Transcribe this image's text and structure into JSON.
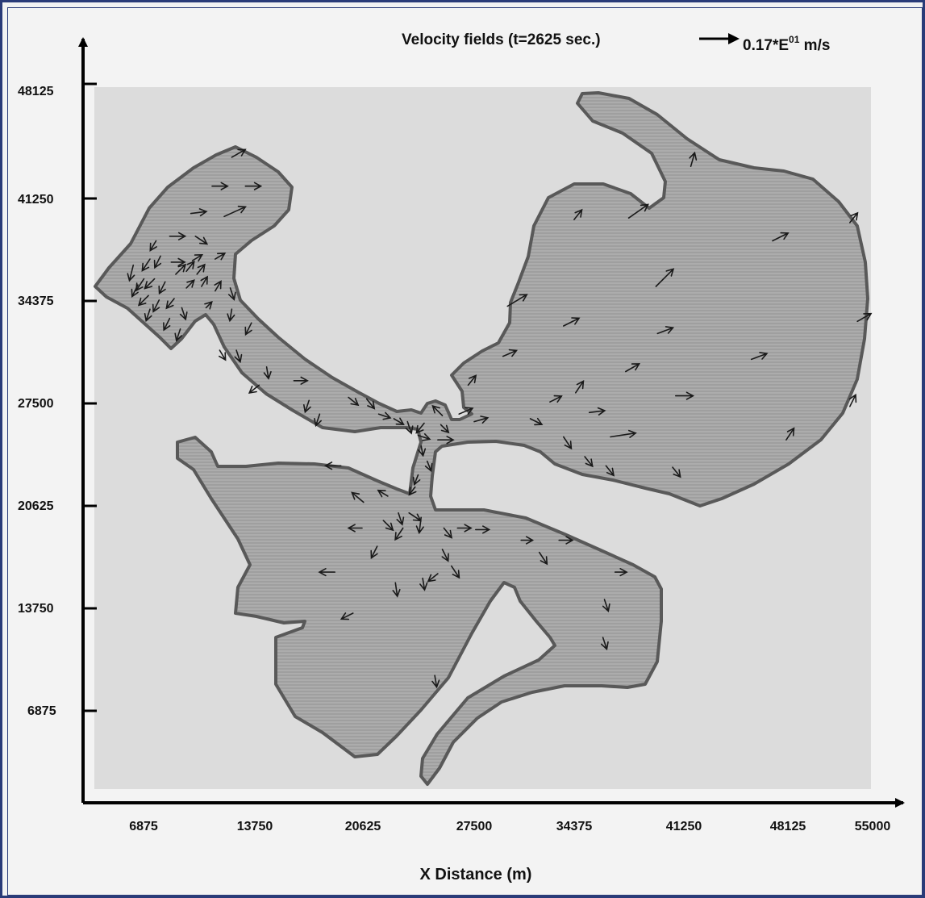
{
  "chart_data": {
    "type": "vector-field",
    "title": "Velocity fields (t=2625 sec.)",
    "legend_scale_label": "0.17*E",
    "legend_scale_exp": "01",
    "legend_scale_unit": " m/s",
    "xlabel": "X Distance (m)",
    "ylabel": "",
    "xlim": [
      1000,
      55000
    ],
    "ylim": [
      0,
      48125
    ],
    "x_ticks": [
      "6875",
      "13750",
      "20625",
      "27500",
      "34375",
      "41250",
      "48125",
      "55000"
    ],
    "y_ticks": [
      "48125",
      "41250",
      "34375",
      "27500",
      "20625",
      "13750",
      "6875"
    ],
    "colors": {
      "domain": "#dcdcdc",
      "water": "#a5a5a5",
      "shore": "#5a5a5a",
      "border": "#2a3b78"
    },
    "vectors": [
      [
        12700,
        43300,
        0.7,
        0.4
      ],
      [
        11400,
        41400,
        0.8,
        0
      ],
      [
        13600,
        41400,
        0.8,
        0
      ],
      [
        7700,
        37800,
        -0.3,
        -0.5
      ],
      [
        10000,
        39600,
        0.8,
        0.1
      ],
      [
        12200,
        39400,
        1.1,
        0.5
      ],
      [
        8600,
        38100,
        0.8,
        0
      ],
      [
        10300,
        38100,
        0.6,
        -0.4
      ],
      [
        7300,
        36600,
        -0.4,
        -0.6
      ],
      [
        8000,
        36800,
        -0.3,
        -0.6
      ],
      [
        8700,
        36400,
        0.7,
        0
      ],
      [
        10100,
        36500,
        0.5,
        0.3
      ],
      [
        11600,
        36600,
        0.5,
        0.3
      ],
      [
        6200,
        36200,
        -0.2,
        -0.8
      ],
      [
        6900,
        35300,
        -0.4,
        -0.6
      ],
      [
        7600,
        35300,
        -0.5,
        -0.5
      ],
      [
        8300,
        35100,
        -0.3,
        -0.6
      ],
      [
        9000,
        35600,
        0.5,
        0.5
      ],
      [
        9700,
        35800,
        0.4,
        0.5
      ],
      [
        10400,
        35600,
        0.4,
        0.5
      ],
      [
        6500,
        34900,
        -0.3,
        -0.6
      ],
      [
        7200,
        34200,
        -0.5,
        -0.5
      ],
      [
        7900,
        33900,
        -0.3,
        -0.6
      ],
      [
        8900,
        34000,
        -0.4,
        -0.5
      ],
      [
        9700,
        34700,
        0.4,
        0.4
      ],
      [
        10700,
        34800,
        0.3,
        0.5
      ],
      [
        11600,
        34500,
        0.3,
        0.5
      ],
      [
        12600,
        34700,
        0.2,
        -0.6
      ],
      [
        7300,
        33300,
        -0.2,
        -0.6
      ],
      [
        8600,
        32700,
        -0.3,
        -0.6
      ],
      [
        9300,
        32000,
        -0.2,
        -0.6
      ],
      [
        9400,
        33400,
        0.2,
        -0.6
      ],
      [
        11000,
        33400,
        0.3,
        0.3
      ],
      [
        12700,
        33300,
        -0.1,
        -0.6
      ],
      [
        14000,
        32400,
        -0.3,
        -0.6
      ],
      [
        11900,
        30600,
        0.3,
        -0.5
      ],
      [
        13000,
        30600,
        0.2,
        -0.6
      ],
      [
        15000,
        29500,
        0.1,
        -0.6
      ],
      [
        14500,
        28300,
        -0.5,
        -0.4
      ],
      [
        16800,
        28600,
        0.7,
        0
      ],
      [
        17800,
        27300,
        -0.2,
        -0.6
      ],
      [
        18500,
        26400,
        -0.2,
        -0.6
      ],
      [
        20400,
        27500,
        0.5,
        -0.4
      ],
      [
        21600,
        27400,
        0.4,
        -0.5
      ],
      [
        22400,
        26400,
        0.6,
        -0.2
      ],
      [
        23400,
        26100,
        0.5,
        -0.3
      ],
      [
        24300,
        25900,
        0.2,
        -0.6
      ],
      [
        25400,
        25800,
        -0.4,
        -0.5
      ],
      [
        25000,
        25000,
        0.6,
        -0.2
      ],
      [
        26500,
        25700,
        0.4,
        -0.4
      ],
      [
        25200,
        24300,
        0.1,
        -0.5
      ],
      [
        25600,
        23300,
        0.2,
        -0.5
      ],
      [
        25000,
        22400,
        -0.2,
        -0.5
      ],
      [
        24800,
        21600,
        -0.3,
        -0.4
      ],
      [
        26300,
        24700,
        0.8,
        0
      ],
      [
        27700,
        26400,
        0.7,
        0.3
      ],
      [
        26600,
        26300,
        -0.5,
        0.5
      ],
      [
        28300,
        28300,
        0.4,
        0.5
      ],
      [
        28700,
        25900,
        0.7,
        0.2
      ],
      [
        30600,
        30200,
        0.7,
        0.3
      ],
      [
        32400,
        26100,
        0.6,
        -0.3
      ],
      [
        30900,
        33500,
        1.0,
        0.6
      ],
      [
        34600,
        32200,
        0.8,
        0.4
      ],
      [
        33700,
        27200,
        0.6,
        0.3
      ],
      [
        34600,
        24900,
        0.4,
        -0.6
      ],
      [
        36300,
        26500,
        0.8,
        0.1
      ],
      [
        35400,
        27800,
        0.4,
        0.6
      ],
      [
        35300,
        39200,
        0.4,
        0.5
      ],
      [
        36000,
        23600,
        0.4,
        -0.5
      ],
      [
        37700,
        24900,
        1.3,
        0.2
      ],
      [
        37400,
        23000,
        0.4,
        -0.5
      ],
      [
        38900,
        39300,
        1.0,
        0.7
      ],
      [
        38700,
        29200,
        0.7,
        0.4
      ],
      [
        40800,
        31700,
        0.8,
        0.3
      ],
      [
        40700,
        34800,
        0.9,
        0.9
      ],
      [
        42000,
        27600,
        0.9,
        0
      ],
      [
        41800,
        22900,
        0.4,
        -0.5
      ],
      [
        43000,
        42700,
        0.2,
        0.7
      ],
      [
        47000,
        30000,
        0.8,
        0.3
      ],
      [
        48400,
        37800,
        0.8,
        0.4
      ],
      [
        49300,
        24700,
        0.4,
        0.6
      ],
      [
        53500,
        39000,
        0.4,
        0.5
      ],
      [
        54000,
        32500,
        0.7,
        0.4
      ],
      [
        53500,
        26900,
        0.3,
        0.6
      ],
      [
        19900,
        23000,
        -0.8,
        0
      ],
      [
        21400,
        20600,
        -0.6,
        0.5
      ],
      [
        22700,
        19400,
        0.5,
        -0.5
      ],
      [
        23000,
        21000,
        -0.5,
        0.3
      ],
      [
        23700,
        19900,
        0.2,
        -0.6
      ],
      [
        24400,
        19900,
        0.6,
        -0.4
      ],
      [
        24000,
        18900,
        -0.4,
        -0.6
      ],
      [
        25200,
        19600,
        -0.1,
        -0.8
      ],
      [
        21300,
        18900,
        -0.7,
        0
      ],
      [
        22300,
        17700,
        -0.3,
        -0.6
      ],
      [
        27600,
        18900,
        0.7,
        0
      ],
      [
        26700,
        18900,
        0.4,
        -0.5
      ],
      [
        28800,
        18800,
        0.7,
        0
      ],
      [
        26600,
        17500,
        0.3,
        -0.6
      ],
      [
        27200,
        16400,
        0.4,
        -0.6
      ],
      [
        26300,
        15900,
        -0.5,
        -0.4
      ],
      [
        25300,
        15600,
        0.1,
        -0.6
      ],
      [
        31800,
        18100,
        0.6,
        0
      ],
      [
        33000,
        17300,
        0.4,
        -0.6
      ],
      [
        34300,
        18100,
        0.7,
        0
      ],
      [
        23500,
        15300,
        0.1,
        -0.7
      ],
      [
        19500,
        16000,
        -0.8,
        0
      ],
      [
        20700,
        13300,
        -0.6,
        -0.3
      ],
      [
        37300,
        14200,
        0.2,
        -0.6
      ],
      [
        38000,
        16000,
        0.6,
        0
      ],
      [
        37200,
        11700,
        0.2,
        -0.6
      ],
      [
        26100,
        9200,
        0.1,
        -0.6
      ]
    ]
  }
}
